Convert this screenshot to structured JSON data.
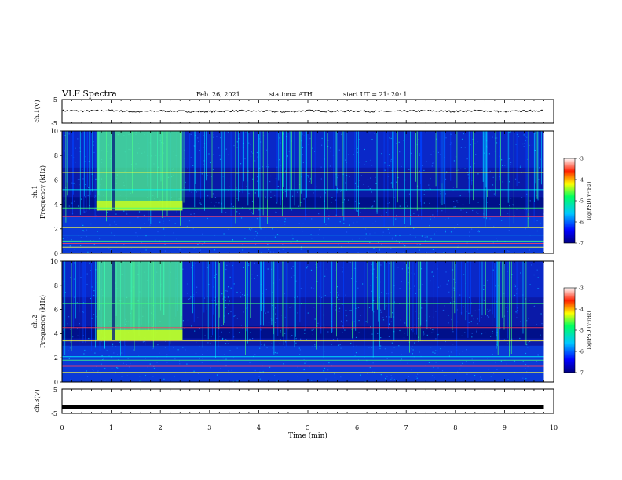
{
  "header": {
    "title": "VLF Spectra",
    "date": "Feb. 26, 2021",
    "station": "station= ATH",
    "start": "start  UT  =   21: 20: 1"
  },
  "chart_data": [
    {
      "type": "line",
      "name": "ch1-waveform",
      "ylabel": "ch.1(V)",
      "ylim": [
        -5,
        5
      ],
      "yticks": [
        "5",
        "-5"
      ],
      "x": [
        0,
        0.5,
        1,
        1.5,
        2,
        2.5,
        3,
        3.5,
        4,
        4.5,
        5,
        5.5,
        6,
        6.5,
        7,
        7.5,
        8,
        8.5,
        9,
        9.5,
        9.8
      ],
      "y": [
        0.3,
        0.1,
        0.4,
        -0.2,
        0.2,
        0.0,
        -0.1,
        0.2,
        0.1,
        -0.2,
        0.3,
        0.0,
        0.2,
        -0.1,
        0.1,
        0.2,
        0.0,
        0.3,
        -0.1,
        0.2,
        0.4
      ]
    },
    {
      "type": "heatmap",
      "name": "ch1-spectrogram",
      "ylabel_top": "ch.1",
      "ylabel": "Frequency (kHz)",
      "ylim": [
        0,
        10
      ],
      "yticks": [
        "0",
        "2",
        "4",
        "6",
        "8",
        "10"
      ],
      "colorbar": {
        "label": "log(PSD)(V²/Hz)",
        "range": [
          -7,
          -3
        ],
        "ticks": [
          "-3",
          "-4",
          "-5",
          "-6",
          "-7"
        ]
      },
      "emissions": [
        {
          "t_start": 0.7,
          "t_end": 2.45,
          "f_low": 3.5,
          "f_high": 10,
          "level": -4.8
        },
        {
          "t_start": 0.7,
          "t_end": 2.45,
          "f_low": 3.5,
          "f_high": 4.3,
          "level": -4.3
        }
      ],
      "lines_khz": [
        0.5,
        0.8,
        1.0,
        1.5,
        2.1,
        3.0,
        3.7,
        5.2,
        6.6
      ]
    },
    {
      "type": "heatmap",
      "name": "ch2-spectrogram",
      "ylabel_top": "ch.2",
      "ylabel": "Frequency (kHz)",
      "ylim": [
        0,
        10
      ],
      "yticks": [
        "0",
        "2",
        "4",
        "6",
        "8",
        "10"
      ],
      "colorbar": {
        "label": "log(PSD)(V²/Hz)",
        "range": [
          -7,
          -3
        ],
        "ticks": [
          "-3",
          "-4",
          "-5",
          "-6",
          "-7"
        ]
      },
      "emissions": [
        {
          "t_start": 0.7,
          "t_end": 2.45,
          "f_low": 3.5,
          "f_high": 10,
          "level": -4.8
        },
        {
          "t_start": 0.7,
          "t_end": 2.45,
          "f_low": 3.5,
          "f_high": 4.3,
          "level": -4.2
        }
      ],
      "lines_khz": [
        0.8,
        1.3,
        1.8,
        2.1,
        3.4,
        4.5,
        6.5
      ]
    },
    {
      "type": "line",
      "name": "ch3-waveform",
      "ylabel": "ch.3(V)",
      "ylim": [
        -5,
        5
      ],
      "yticks": [
        "5",
        "-5"
      ],
      "x": [
        0,
        9.8
      ],
      "y": [
        -2.5,
        -2.5
      ]
    }
  ],
  "xaxis": {
    "label": "Time (min)",
    "range": [
      0,
      10
    ],
    "ticks": [
      "0",
      "1",
      "2",
      "3",
      "4",
      "5",
      "6",
      "7",
      "8",
      "9",
      "10"
    ]
  }
}
